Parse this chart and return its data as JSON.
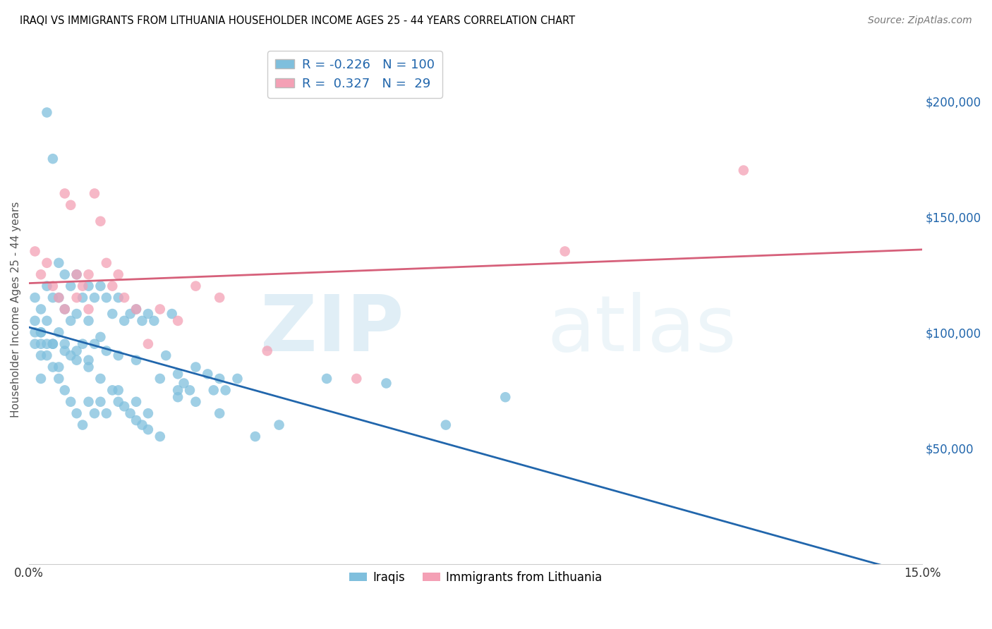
{
  "title": "IRAQI VS IMMIGRANTS FROM LITHUANIA HOUSEHOLDER INCOME AGES 25 - 44 YEARS CORRELATION CHART",
  "source": "Source: ZipAtlas.com",
  "ylabel": "Householder Income Ages 25 - 44 years",
  "xmin": 0.0,
  "xmax": 0.15,
  "ymin": 0,
  "ymax": 220000,
  "yticks": [
    50000,
    100000,
    150000,
    200000
  ],
  "ytick_labels": [
    "$50,000",
    "$100,000",
    "$150,000",
    "$200,000"
  ],
  "xticks": [
    0.0,
    0.05,
    0.1,
    0.15
  ],
  "xtick_labels": [
    "0.0%",
    "",
    "",
    "15.0%"
  ],
  "legend_R_blue": "-0.226",
  "legend_N_blue": "100",
  "legend_R_pink": "0.327",
  "legend_N_pink": "29",
  "blue_color": "#7fbfdd",
  "pink_color": "#f4a0b5",
  "blue_line_color": "#2166ac",
  "pink_line_color": "#d6607a",
  "legend_label_blue": "Iraqis",
  "legend_label_pink": "Immigrants from Lithuania",
  "iraqis_x": [
    0.001,
    0.001,
    0.001,
    0.002,
    0.002,
    0.002,
    0.002,
    0.003,
    0.003,
    0.003,
    0.003,
    0.004,
    0.004,
    0.004,
    0.005,
    0.005,
    0.005,
    0.005,
    0.006,
    0.006,
    0.006,
    0.007,
    0.007,
    0.007,
    0.008,
    0.008,
    0.008,
    0.009,
    0.009,
    0.01,
    0.01,
    0.01,
    0.011,
    0.011,
    0.012,
    0.012,
    0.013,
    0.013,
    0.014,
    0.015,
    0.015,
    0.016,
    0.017,
    0.018,
    0.018,
    0.019,
    0.02,
    0.021,
    0.022,
    0.023,
    0.024,
    0.025,
    0.026,
    0.027,
    0.028,
    0.03,
    0.031,
    0.032,
    0.033,
    0.035,
    0.001,
    0.002,
    0.003,
    0.004,
    0.005,
    0.006,
    0.007,
    0.008,
    0.009,
    0.01,
    0.011,
    0.012,
    0.013,
    0.014,
    0.015,
    0.016,
    0.017,
    0.018,
    0.019,
    0.02,
    0.022,
    0.025,
    0.028,
    0.032,
    0.038,
    0.042,
    0.05,
    0.06,
    0.07,
    0.08,
    0.002,
    0.004,
    0.006,
    0.008,
    0.01,
    0.012,
    0.015,
    0.018,
    0.02,
    0.025
  ],
  "iraqis_y": [
    115000,
    105000,
    95000,
    110000,
    100000,
    90000,
    80000,
    195000,
    120000,
    105000,
    95000,
    175000,
    115000,
    95000,
    130000,
    115000,
    100000,
    85000,
    125000,
    110000,
    95000,
    120000,
    105000,
    90000,
    125000,
    108000,
    92000,
    115000,
    95000,
    120000,
    105000,
    88000,
    115000,
    95000,
    120000,
    98000,
    115000,
    92000,
    108000,
    115000,
    90000,
    105000,
    108000,
    110000,
    88000,
    105000,
    108000,
    105000,
    80000,
    90000,
    108000,
    82000,
    78000,
    75000,
    85000,
    82000,
    75000,
    80000,
    75000,
    80000,
    100000,
    95000,
    90000,
    85000,
    80000,
    75000,
    70000,
    65000,
    60000,
    70000,
    65000,
    70000,
    65000,
    75000,
    70000,
    68000,
    65000,
    62000,
    60000,
    58000,
    55000,
    75000,
    70000,
    65000,
    55000,
    60000,
    80000,
    78000,
    60000,
    72000,
    100000,
    95000,
    92000,
    88000,
    85000,
    80000,
    75000,
    70000,
    65000,
    72000
  ],
  "lithuania_x": [
    0.001,
    0.002,
    0.003,
    0.004,
    0.005,
    0.006,
    0.006,
    0.007,
    0.008,
    0.008,
    0.009,
    0.01,
    0.01,
    0.011,
    0.012,
    0.013,
    0.014,
    0.015,
    0.016,
    0.018,
    0.02,
    0.022,
    0.025,
    0.028,
    0.032,
    0.04,
    0.055,
    0.09,
    0.12
  ],
  "lithuania_y": [
    135000,
    125000,
    130000,
    120000,
    115000,
    160000,
    110000,
    155000,
    125000,
    115000,
    120000,
    125000,
    110000,
    160000,
    148000,
    130000,
    120000,
    125000,
    115000,
    110000,
    95000,
    110000,
    105000,
    120000,
    115000,
    92000,
    80000,
    135000,
    170000
  ]
}
